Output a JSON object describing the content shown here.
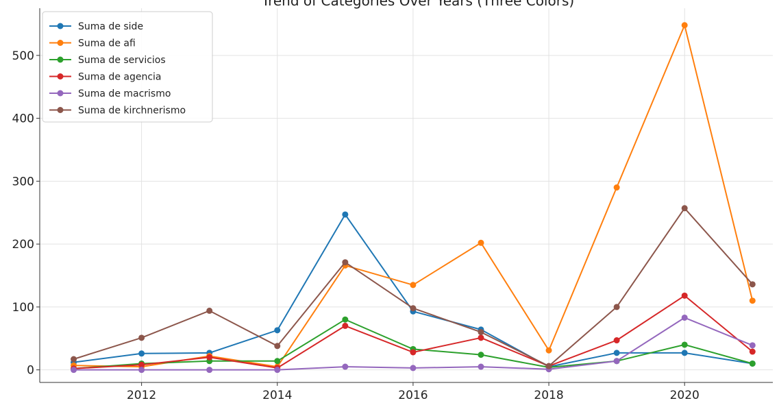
{
  "chart_data": {
    "type": "line",
    "title": "Trend of Categories Over Years (Three Colors)",
    "xlabel": "",
    "ylabel": "",
    "x": [
      2011,
      2012,
      2013,
      2014,
      2015,
      2016,
      2017,
      2018,
      2019,
      2020,
      2021
    ],
    "xlim": [
      2010.5,
      2021.3
    ],
    "ylim": [
      -20,
      575
    ],
    "x_ticks": [
      2012,
      2014,
      2016,
      2018,
      2020
    ],
    "y_ticks": [
      0,
      100,
      200,
      300,
      400,
      500
    ],
    "grid": true,
    "legend_position": "top-left",
    "series": [
      {
        "name": "Suma de side",
        "color": "#1f77b4",
        "values": [
          12,
          26,
          27,
          63,
          247,
          93,
          64,
          5,
          27,
          27,
          10
        ]
      },
      {
        "name": "Suma de afi",
        "color": "#ff7f0e",
        "values": [
          7,
          5,
          22,
          5,
          166,
          135,
          202,
          31,
          290,
          548,
          110
        ]
      },
      {
        "name": "Suma de servicios",
        "color": "#2ca02c",
        "values": [
          2,
          10,
          14,
          14,
          80,
          33,
          24,
          4,
          14,
          40,
          10
        ]
      },
      {
        "name": "Suma de agencia",
        "color": "#d62728",
        "values": [
          2,
          8,
          20,
          3,
          70,
          28,
          51,
          6,
          47,
          118,
          29
        ]
      },
      {
        "name": "Suma de macrismo",
        "color": "#9467bd",
        "values": [
          0,
          0,
          0,
          0,
          5,
          3,
          5,
          1,
          14,
          83,
          39
        ]
      },
      {
        "name": "Suma de kirchnerismo",
        "color": "#8c564b",
        "values": [
          17,
          51,
          94,
          38,
          171,
          98,
          60,
          6,
          100,
          257,
          136
        ]
      }
    ]
  }
}
